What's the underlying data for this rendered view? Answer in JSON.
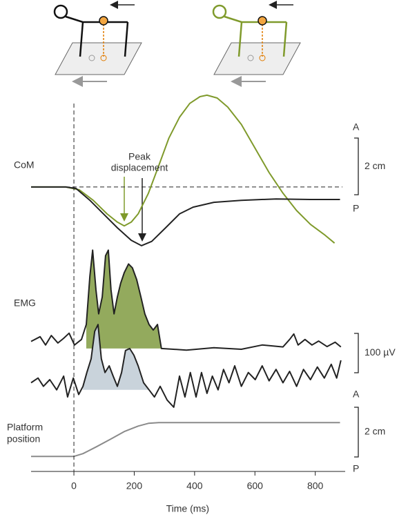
{
  "chart_data": [
    {
      "type": "line",
      "label": "CoM",
      "annotation": [
        "Peak",
        "displacement"
      ],
      "direction_labels": [
        "A",
        "P"
      ],
      "scale_bar": {
        "value": 2,
        "label": "2 cm"
      },
      "xlim": [
        -142,
        890
      ],
      "ylim": [
        -2.17,
        3.53
      ],
      "series": [
        {
          "color": "#7f9a2b",
          "x": [
            -142,
            -27,
            18,
            64,
            110,
            144,
            167,
            190,
            213,
            247,
            281,
            315,
            350,
            384,
            418,
            441,
            475,
            510,
            555,
            601,
            647,
            693,
            738,
            784,
            830,
            864
          ],
          "values": [
            0,
            0,
            -0.1,
            -0.47,
            -0.95,
            -1.24,
            -1.37,
            -1.24,
            -0.95,
            -0.22,
            0.75,
            1.73,
            2.46,
            2.95,
            3.19,
            3.24,
            3.14,
            2.82,
            2.21,
            1.36,
            0.51,
            -0.22,
            -0.83,
            -1.32,
            -1.68,
            -1.98
          ]
        },
        {
          "color": "#222222",
          "x": [
            -142,
            -27,
            7,
            53,
            98,
            144,
            190,
            224,
            258,
            304,
            350,
            395,
            464,
            555,
            670,
            784,
            882
          ],
          "values": [
            0,
            0,
            -0.05,
            -0.47,
            -0.95,
            -1.44,
            -1.88,
            -2.07,
            -1.92,
            -1.44,
            -0.95,
            -0.71,
            -0.54,
            -0.47,
            -0.42,
            -0.44,
            -0.44
          ]
        }
      ]
    },
    {
      "type": "area",
      "label": "EMG",
      "scale_bar": {
        "value": 100,
        "label": "100 µV"
      },
      "xlim": [
        -142,
        890
      ],
      "series": [
        {
          "color": "#222222",
          "fill": "#93aa5d",
          "fill_x": [
            41,
            290
          ],
          "ylim": [
            -30,
            270
          ],
          "x": [
            -142,
            -112,
            -94,
            -75,
            -53,
            -34,
            -16,
            2,
            25,
            41,
            53,
            62,
            73,
            82,
            94,
            105,
            114,
            123,
            133,
            144,
            155,
            167,
            181,
            194,
            208,
            222,
            235,
            249,
            263,
            277,
            290,
            373,
            464,
            555,
            624,
            693,
            715,
            729,
            743,
            766,
            789,
            811,
            839,
            866,
            885
          ],
          "values": [
            18,
            30,
            9,
            33,
            14,
            26,
            39,
            9,
            23,
            61,
            184,
            250,
            149,
            88,
            131,
            236,
            250,
            149,
            88,
            131,
            166,
            193,
            215,
            205,
            175,
            131,
            88,
            61,
            47,
            61,
            0,
            -4,
            2,
            -2,
            9,
            4,
            23,
            37,
            9,
            23,
            9,
            19,
            5,
            16,
            4
          ]
        },
        {
          "color": "#222222",
          "fill": "#c9d3db",
          "fill_x": [
            25,
            270
          ],
          "ylim": [
            -60,
            240
          ],
          "x": [
            -142,
            -119,
            -101,
            -80,
            -57,
            -34,
            -21,
            -2,
            16,
            30,
            43,
            57,
            69,
            80,
            91,
            103,
            117,
            130,
            144,
            158,
            171,
            185,
            199,
            213,
            231,
            249,
            267,
            286,
            309,
            331,
            350,
            368,
            386,
            405,
            423,
            441,
            459,
            478,
            496,
            514,
            533,
            555,
            578,
            601,
            624,
            647,
            670,
            693,
            715,
            738,
            761,
            784,
            807,
            830,
            853,
            871,
            885
          ],
          "values": [
            18,
            30,
            9,
            26,
            0,
            35,
            -18,
            30,
            -12,
            9,
            44,
            79,
            149,
            166,
            79,
            44,
            61,
            35,
            9,
            44,
            100,
            105,
            88,
            61,
            18,
            0,
            -18,
            9,
            -26,
            -44,
            35,
            -18,
            44,
            -18,
            44,
            -9,
            35,
            0,
            52,
            18,
            61,
            9,
            44,
            26,
            61,
            23,
            52,
            18,
            47,
            9,
            52,
            26,
            58,
            30,
            65,
            30,
            75
          ]
        }
      ]
    },
    {
      "type": "line",
      "label": [
        "Platform",
        "position"
      ],
      "direction_labels": [
        "A",
        "P"
      ],
      "scale_bar": {
        "value": 2,
        "label": "2 cm"
      },
      "xlabel": "Time (ms)",
      "xlim": [
        -142,
        890
      ],
      "xticks": [
        0,
        200,
        400,
        600,
        800
      ],
      "ylim": [
        -0.3,
        2.2
      ],
      "series": [
        {
          "color": "#8a8a8a",
          "x": [
            -142,
            0,
            30,
            75,
            121,
            167,
            213,
            247,
            281,
            882
          ],
          "values": [
            0,
            0,
            0.11,
            0.39,
            0.69,
            1.0,
            1.22,
            1.33,
            1.36,
            1.36
          ]
        }
      ]
    }
  ]
}
